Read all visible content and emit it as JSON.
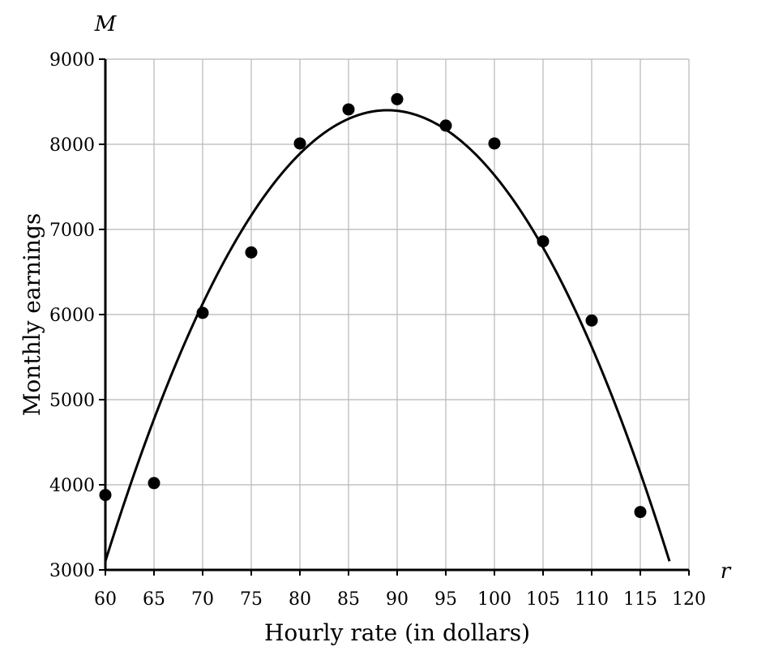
{
  "chart_data": {
    "type": "scatter",
    "xlabel": "Hourly rate (in dollars)",
    "ylabel": "Monthly earnings",
    "x_var": "r",
    "y_var": "M",
    "xlim": [
      60,
      120
    ],
    "ylim": [
      3000,
      9000
    ],
    "x_ticks": [
      60,
      65,
      70,
      75,
      80,
      85,
      90,
      95,
      100,
      105,
      110,
      115,
      120
    ],
    "y_ticks": [
      3000,
      4000,
      5000,
      6000,
      7000,
      8000,
      9000
    ],
    "grid": true,
    "points": [
      {
        "x": 60,
        "y": 3880
      },
      {
        "x": 65,
        "y": 4020
      },
      {
        "x": 70,
        "y": 6020
      },
      {
        "x": 75,
        "y": 6730
      },
      {
        "x": 80,
        "y": 8010
      },
      {
        "x": 85,
        "y": 8410
      },
      {
        "x": 90,
        "y": 8530
      },
      {
        "x": 95,
        "y": 8220
      },
      {
        "x": 100,
        "y": 8010
      },
      {
        "x": 105,
        "y": 6860
      },
      {
        "x": 110,
        "y": 5930
      },
      {
        "x": 115,
        "y": 3680
      }
    ],
    "fit_curve": {
      "type": "quadratic",
      "vertex_x": 89,
      "vertex_y": 8400,
      "a": -6.3,
      "x_range": [
        60,
        118
      ]
    }
  }
}
